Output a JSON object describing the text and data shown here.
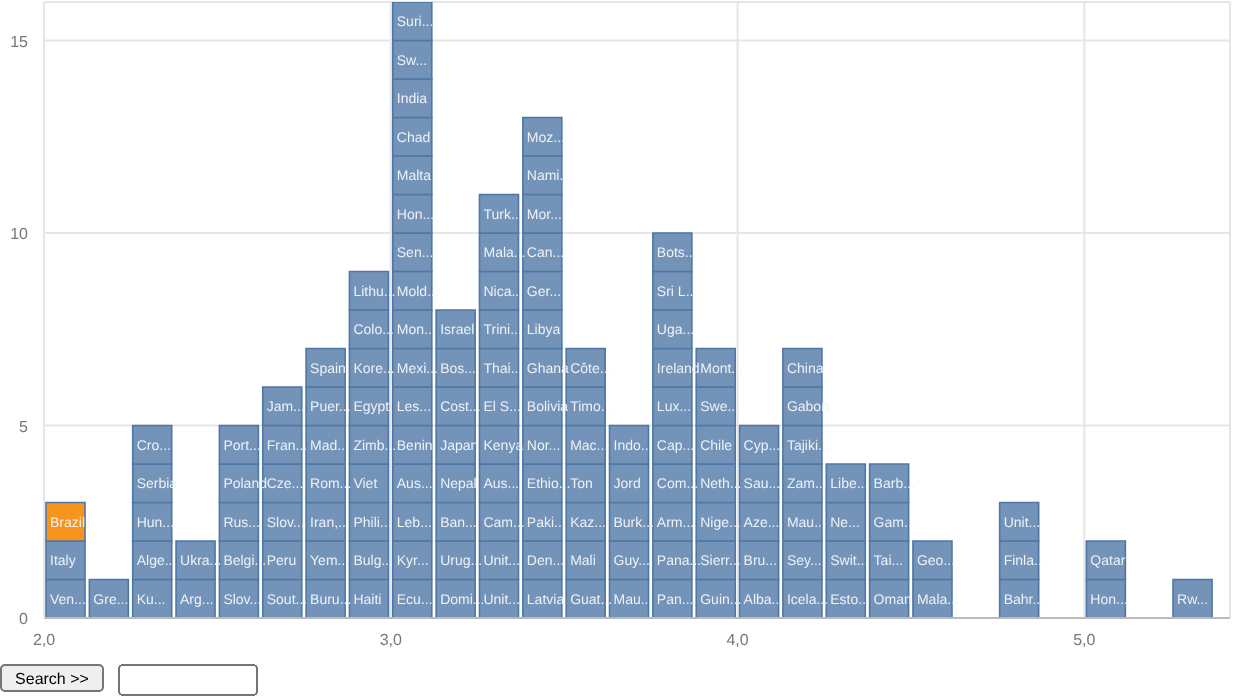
{
  "chart_data": {
    "type": "bar",
    "stacked": true,
    "xlim": [
      2,
      5.42
    ],
    "xticks": [
      {
        "value": 2,
        "label": "2,0"
      },
      {
        "value": 3,
        "label": "3,0"
      },
      {
        "value": 4,
        "label": "4,0"
      },
      {
        "value": 5,
        "label": "5,0"
      }
    ],
    "ylim": [
      0,
      16
    ],
    "yticks": [
      0,
      5,
      10,
      15
    ],
    "grid": true,
    "annotations": [
      "Search >>"
    ],
    "series": [
      {
        "color": "#7393b9",
        "x": [
          2.0625,
          2.1875,
          2.3125,
          2.4375,
          2.5625,
          2.6875,
          2.8125,
          2.9375,
          3.0625,
          3.1875,
          3.3125,
          3.4375,
          3.5625,
          3.6875,
          3.8125,
          3.9375,
          4.0625,
          4.1875,
          4.3125,
          4.4375,
          4.5625,
          4.8125,
          5.0625,
          5.3125
        ],
        "values": [
          1,
          1,
          1,
          1,
          1,
          1,
          1,
          1,
          1,
          1,
          1,
          1,
          1,
          1,
          1,
          1,
          1,
          1,
          1,
          1,
          1,
          1,
          1,
          1
        ],
        "value_labels": [
          "Ven...",
          "Gre...",
          "Ku...",
          "Arg...",
          "Slov...",
          "Sout...",
          "Buru...",
          "Haiti",
          "Ecu...",
          "Domi...",
          "Unit...",
          "Latvia",
          "Guat...",
          "Mau...",
          "Pan...",
          "Guin...",
          "Alba...",
          "Icela...",
          "Esto...",
          "Oman",
          "Mala...",
          "Bahr...",
          "Hon...",
          "Rw..."
        ]
      },
      {
        "color": "#7393b9",
        "x": [
          2.0625,
          2.3125,
          2.4375,
          2.5625,
          2.6875,
          2.8125,
          2.9375,
          3.0625,
          3.1875,
          3.3125,
          3.4375,
          3.5625,
          3.6875,
          3.8125,
          3.9375,
          4.0625,
          4.1875,
          4.3125,
          4.4375,
          4.5625,
          4.8125,
          5.0625
        ],
        "values": [
          1,
          1,
          1,
          1,
          1,
          1,
          1,
          1,
          1,
          1,
          1,
          1,
          1,
          1,
          1,
          1,
          1,
          1,
          1,
          1,
          1,
          1
        ],
        "value_labels": [
          "Italy",
          "Alge...",
          "Ukra...",
          "Belgi...",
          "Peru",
          "Yem...",
          "Bulg...",
          "Kyr...",
          "Urug...",
          "Unit...",
          "Den...",
          "Mali",
          "Guy...",
          "Pana...",
          "Sierr...",
          "Bru...",
          "Sey...",
          "Swit...",
          "Tai...",
          "Geo...",
          "Finla...",
          "Qatar"
        ]
      },
      {
        "color": "#7393b9",
        "colors": [
          "#f7941e",
          "#7393b9",
          "#7393b9",
          "#7393b9",
          "#7393b9",
          "#7393b9",
          "#7393b9",
          "#7393b9",
          "#7393b9",
          "#7393b9",
          "#7393b9",
          "#7393b9",
          "#7393b9",
          "#7393b9",
          "#7393b9",
          "#7393b9",
          "#7393b9",
          "#7393b9",
          "#7393b9"
        ],
        "x": [
          2.0625,
          2.3125,
          2.5625,
          2.6875,
          2.8125,
          2.9375,
          3.0625,
          3.1875,
          3.3125,
          3.4375,
          3.5625,
          3.6875,
          3.8125,
          3.9375,
          4.0625,
          4.1875,
          4.3125,
          4.4375,
          4.8125
        ],
        "values": [
          1,
          1,
          1,
          1,
          1,
          1,
          1,
          1,
          1,
          1,
          1,
          1,
          1,
          1,
          1,
          1,
          1,
          1,
          1
        ],
        "value_labels": [
          "Brazil",
          "Hun...",
          "Rus...",
          "Slov...",
          "Iran,...",
          "Phili...",
          "Leb...",
          "Ban...",
          "Cam...",
          "Paki...",
          "Kaz...",
          "Burk...",
          "Arm...",
          "Nige...",
          "Aze...",
          "Mau...",
          "Ne...",
          "Gam...",
          "Unit..."
        ]
      },
      {
        "color": "#7393b9",
        "x": [
          2.3125,
          2.5625,
          2.6875,
          2.8125,
          2.9375,
          3.0625,
          3.1875,
          3.3125,
          3.4375,
          3.5625,
          3.6875,
          3.8125,
          3.9375,
          4.0625,
          4.1875,
          4.3125,
          4.4375
        ],
        "values": [
          1,
          1,
          1,
          1,
          1,
          1,
          1,
          1,
          1,
          1,
          1,
          1,
          1,
          1,
          1,
          1,
          1
        ],
        "value_labels": [
          "Serbia",
          "Poland",
          "Cze...",
          "Rom...",
          "Viet",
          "Aus...",
          "Nepal",
          "Aus...",
          "Ethio...",
          "Ton",
          "Jord",
          "Com...",
          "Neth...",
          "Sau...",
          "Zam...",
          "Libe...",
          "Barb..."
        ]
      },
      {
        "color": "#7393b9",
        "x": [
          2.3125,
          2.5625,
          2.6875,
          2.8125,
          2.9375,
          3.0625,
          3.1875,
          3.3125,
          3.4375,
          3.5625,
          3.6875,
          3.8125,
          3.9375,
          4.0625,
          4.1875
        ],
        "values": [
          1,
          1,
          1,
          1,
          1,
          1,
          1,
          1,
          1,
          1,
          1,
          1,
          1,
          1,
          1
        ],
        "value_labels": [
          "Cro...",
          "Port...",
          "Fran...",
          "Mad...",
          "Zimb...",
          "Benin",
          "Japan",
          "Kenya",
          "Nor...",
          "Mac...",
          "Indo...",
          "Cap...",
          "Chile",
          "Cyp...",
          "Tajiki..."
        ]
      },
      {
        "color": "#7393b9",
        "x": [
          2.6875,
          2.8125,
          2.9375,
          3.0625,
          3.1875,
          3.3125,
          3.4375,
          3.5625,
          3.8125,
          3.9375,
          4.1875
        ],
        "values": [
          1,
          1,
          1,
          1,
          1,
          1,
          1,
          1,
          1,
          1,
          1
        ],
        "value_labels": [
          "Jam...",
          "Puer...",
          "Egypt",
          "Les...",
          "Cost...",
          "El S...",
          "Bolivia",
          "Timo...",
          "Lux...",
          "Swe...",
          "Gabon"
        ]
      },
      {
        "color": "#7393b9",
        "x": [
          2.8125,
          2.9375,
          3.0625,
          3.1875,
          3.3125,
          3.4375,
          3.5625,
          3.8125,
          3.9375,
          4.1875
        ],
        "values": [
          1,
          1,
          1,
          1,
          1,
          1,
          1,
          1,
          1,
          1
        ],
        "value_labels": [
          "Spain",
          "Kore...",
          "Mexi...",
          "Bos...",
          "Thai...",
          "Ghana",
          "Côte...",
          "Ireland",
          "Mont...",
          "China"
        ]
      },
      {
        "color": "#7393b9",
        "x": [
          2.9375,
          3.0625,
          3.1875,
          3.3125,
          3.4375,
          3.8125
        ],
        "values": [
          1,
          1,
          1,
          1,
          1,
          1
        ],
        "value_labels": [
          "Colo...",
          "Mon...",
          "Israel",
          "Trini...",
          "Libya",
          "Uga..."
        ]
      },
      {
        "color": "#7393b9",
        "x": [
          2.9375,
          3.0625,
          3.3125,
          3.4375,
          3.8125
        ],
        "values": [
          1,
          1,
          1,
          1,
          1
        ],
        "value_labels": [
          "Lithu...",
          "Mold...",
          "Nica...",
          "Ger...",
          "Sri L..."
        ]
      },
      {
        "color": "#7393b9",
        "x": [
          3.0625,
          3.3125,
          3.4375,
          3.8125
        ],
        "values": [
          1,
          1,
          1,
          1
        ],
        "value_labels": [
          "Sen...",
          "Mala...",
          "Can...",
          "Bots..."
        ]
      },
      {
        "color": "#7393b9",
        "x": [
          3.0625,
          3.3125,
          3.4375
        ],
        "values": [
          1,
          1,
          1
        ],
        "value_labels": [
          "Hon...",
          "Turk...",
          "Mor..."
        ]
      },
      {
        "color": "#7393b9",
        "x": [
          3.0625,
          3.4375
        ],
        "values": [
          1,
          1
        ],
        "value_labels": [
          "Malta",
          "Nami..."
        ]
      },
      {
        "color": "#7393b9",
        "x": [
          3.0625,
          3.4375
        ],
        "values": [
          1,
          1
        ],
        "value_labels": [
          "Chad",
          "Moz..."
        ]
      },
      {
        "color": "#7393b9",
        "x": [
          3.0625
        ],
        "values": [
          1
        ],
        "value_labels": [
          "India"
        ]
      },
      {
        "color": "#7393b9",
        "x": [
          3.0625
        ],
        "values": [
          1
        ],
        "value_labels": [
          "Sw..."
        ]
      },
      {
        "color": "#7393b9",
        "x": [
          3.0625
        ],
        "values": [
          1
        ],
        "value_labels": [
          "Suri..."
        ]
      }
    ]
  }
}
